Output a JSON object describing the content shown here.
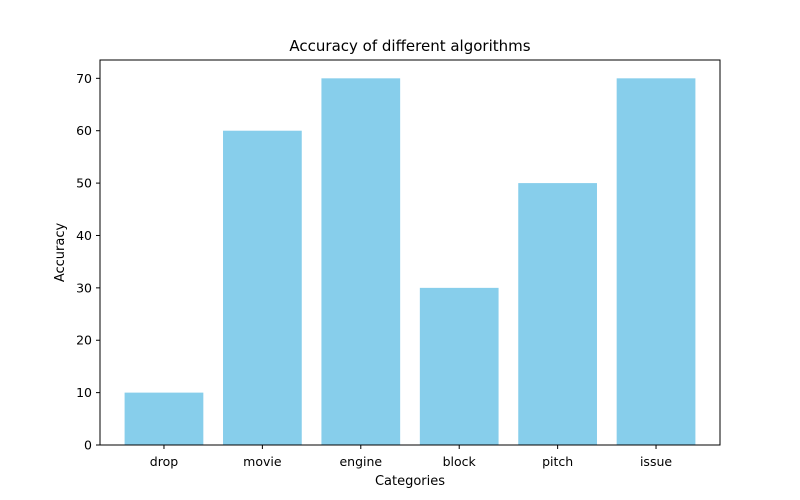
{
  "chart_data": {
    "type": "bar",
    "title": "Accuracy of different algorithms",
    "xlabel": "Categories",
    "ylabel": "Accuracy",
    "categories": [
      "drop",
      "movie",
      "engine",
      "block",
      "pitch",
      "issue"
    ],
    "values": [
      10,
      60,
      70,
      30,
      50,
      70
    ],
    "ylim": [
      0,
      73.5
    ],
    "yticks": [
      0,
      10,
      20,
      30,
      40,
      50,
      60,
      70
    ],
    "bar_color": "#87CEEB",
    "grid": false,
    "legend": "none"
  }
}
